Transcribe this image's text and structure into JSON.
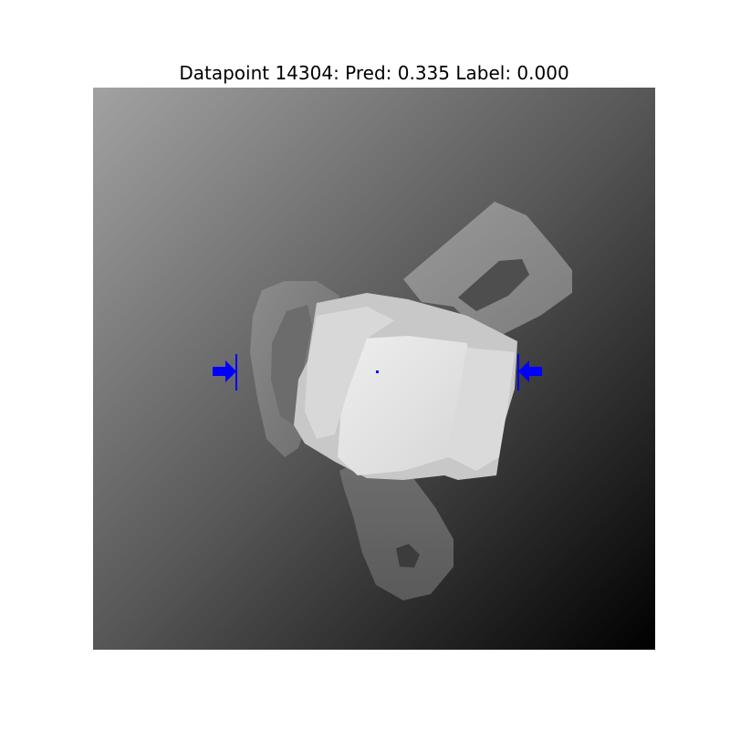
{
  "figure": {
    "title": "Datapoint 14304: Pred: 0.335 Label: 0.000"
  },
  "image": {
    "description_icon": "depth-image",
    "grasp_color": "#0000ff"
  }
}
